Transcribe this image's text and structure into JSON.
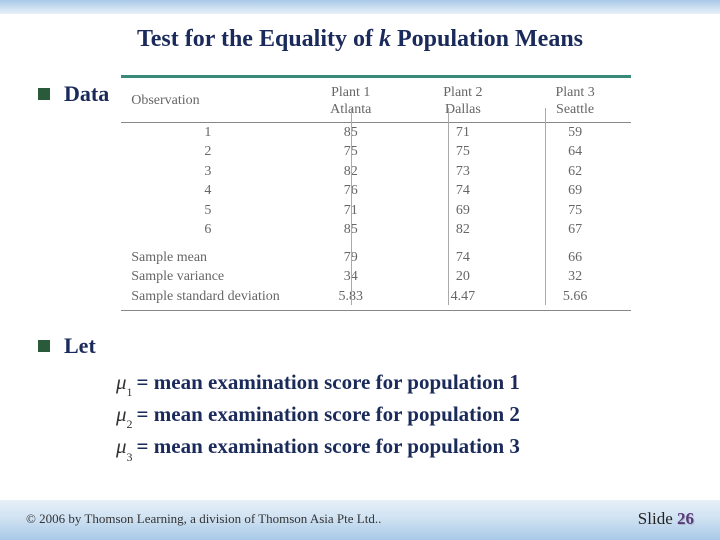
{
  "title_pre": "Test for the Equality of ",
  "title_ital": "k",
  "title_post": "  Population Means",
  "bullets": {
    "data": "Data",
    "let": "Let"
  },
  "table": {
    "header_obs": "Observation",
    "plants": [
      {
        "name": "Plant 1",
        "city": "Atlanta"
      },
      {
        "name": "Plant 2",
        "city": "Dallas"
      },
      {
        "name": "Plant 3",
        "city": "Seattle"
      }
    ],
    "obs_labels": [
      "1",
      "2",
      "3",
      "4",
      "5",
      "6"
    ],
    "values": [
      [
        "85",
        "71",
        "59"
      ],
      [
        "75",
        "75",
        "64"
      ],
      [
        "82",
        "73",
        "62"
      ],
      [
        "76",
        "74",
        "69"
      ],
      [
        "71",
        "69",
        "75"
      ],
      [
        "85",
        "82",
        "67"
      ]
    ],
    "summary_labels": [
      "Sample mean",
      "Sample variance",
      "Sample standard deviation"
    ],
    "summary_values": [
      [
        "79",
        "74",
        "66"
      ],
      [
        "34",
        "20",
        "32"
      ],
      [
        "5.83",
        "4.47",
        "5.66"
      ]
    ]
  },
  "let_defs": [
    {
      "sub": "1",
      "text": "= mean examination score for population 1"
    },
    {
      "sub": "2",
      "text": "= mean examination score for population 2"
    },
    {
      "sub": "3",
      "text": "= mean examination score for population 3"
    }
  ],
  "footer": {
    "copyright": "© 2006 by Thomson Learning, a division of Thomson Asia Pte Ltd..",
    "slide_label": "Slide",
    "slide_number": "26"
  },
  "dividers_left_pct": [
    45,
    64,
    83
  ]
}
